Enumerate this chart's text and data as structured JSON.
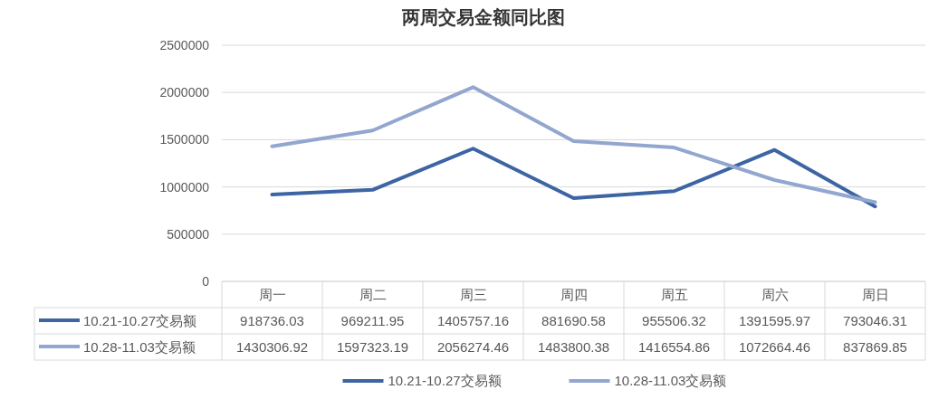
{
  "chart_data": {
    "type": "line",
    "title": "两周交易金额同比图",
    "categories": [
      "周一",
      "周二",
      "周三",
      "周四",
      "周五",
      "周六",
      "周日"
    ],
    "series": [
      {
        "name": "10.21-10.27交易额",
        "color": "#3d64a3",
        "values": [
          918736.03,
          969211.95,
          1405757.16,
          881690.58,
          955506.32,
          1391595.97,
          793046.31
        ]
      },
      {
        "name": "10.28-11.03交易额",
        "color": "#92a6cf",
        "values": [
          1430306.92,
          1597323.19,
          2056274.46,
          1483800.38,
          1416554.86,
          1072664.46,
          837869.85
        ]
      }
    ],
    "ylim": [
      0,
      2500000
    ],
    "yticks": [
      0,
      500000,
      1000000,
      1500000,
      2000000,
      2500000
    ],
    "grid": "y",
    "legend": "bottom",
    "data_labels": true,
    "marker": "none",
    "line_style": "solid"
  }
}
